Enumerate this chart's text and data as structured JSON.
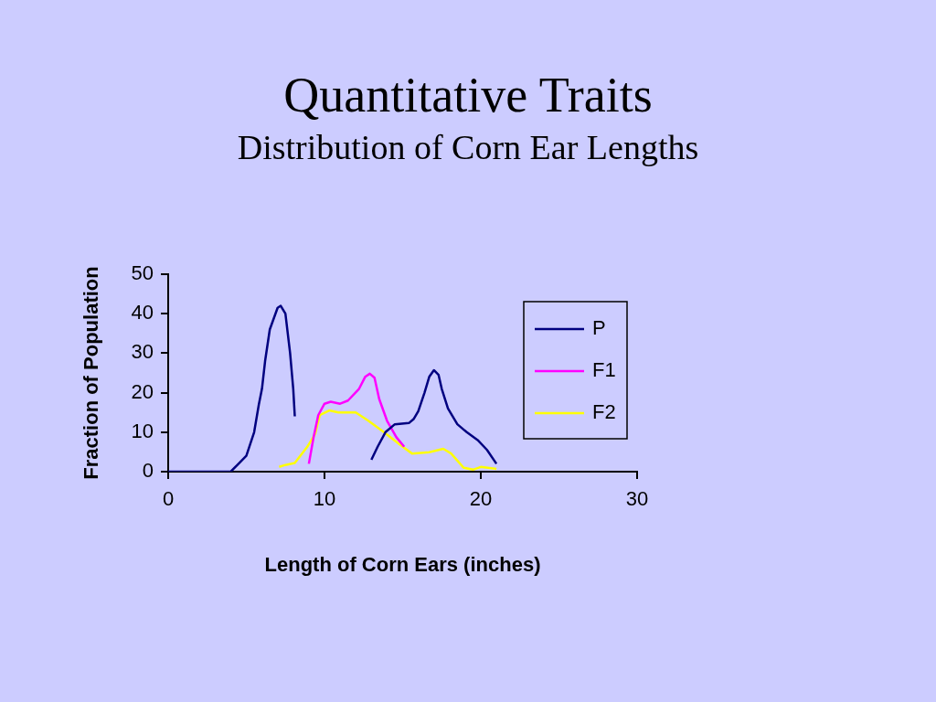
{
  "chart_data": {
    "type": "line",
    "title": "Quantitative Traits",
    "subtitle": "Distribution of Corn Ear Lengths",
    "xlabel": "Length of Corn Ears (inches)",
    "ylabel": "Fraction of Population",
    "xlim": [
      0,
      30
    ],
    "xticks": [
      0,
      10,
      20,
      30
    ],
    "ylim": [
      0,
      50
    ],
    "yticks": [
      0,
      10,
      20,
      30,
      40,
      50
    ],
    "grid": false,
    "legend": "right",
    "marker": "none",
    "line_style": "solid",
    "series": [
      {
        "name": "P",
        "color": "#000080",
        "x": [
          0,
          4,
          4.5,
          5,
          5.5,
          5.8,
          6,
          6.2,
          6.5,
          7,
          7.2,
          7.5,
          7.8,
          8,
          8.1,
          10,
          13,
          13.4,
          13.9,
          14.5,
          15.4,
          15.7,
          16,
          16.4,
          16.7,
          17,
          17.3,
          17.5,
          17.9,
          18.5,
          19.1,
          19.8,
          20.4,
          21
        ],
        "values": [
          0,
          0,
          2,
          4,
          10,
          17,
          21,
          28,
          36,
          41.5,
          42,
          40,
          30,
          21,
          14,
          null,
          3,
          6.3,
          10,
          12,
          12.3,
          13.3,
          15.3,
          20,
          24,
          25.7,
          24.5,
          21,
          16,
          12,
          10,
          8,
          5.5,
          2
        ]
      },
      {
        "name": "F1",
        "color": "#ff00ff",
        "x": [
          9,
          9.3,
          9.6,
          10,
          10.4,
          11,
          11.5,
          12.2,
          12.6,
          12.9,
          13.2,
          13.5,
          14,
          14.6,
          15.1
        ],
        "values": [
          2,
          8.7,
          14.3,
          17.2,
          17.7,
          17.2,
          18,
          20.9,
          24,
          24.8,
          23.8,
          18.4,
          12.9,
          8.7,
          6.3
        ]
      },
      {
        "name": "F2",
        "color": "#ffff00",
        "x": [
          7.1,
          7.5,
          8.1,
          8.9,
          9.4,
          9.7,
          10.3,
          10.9,
          12,
          12.8,
          13.8,
          15,
          15.6,
          16.7,
          17.6,
          18.1,
          18.9,
          19.5,
          20,
          21
        ],
        "values": [
          1.2,
          1.7,
          2.2,
          6.3,
          9.5,
          14.3,
          15.5,
          15,
          15,
          12.9,
          10,
          6.3,
          4.6,
          4.9,
          5.8,
          4.6,
          1,
          0.5,
          1.2,
          0.7
        ]
      }
    ]
  }
}
